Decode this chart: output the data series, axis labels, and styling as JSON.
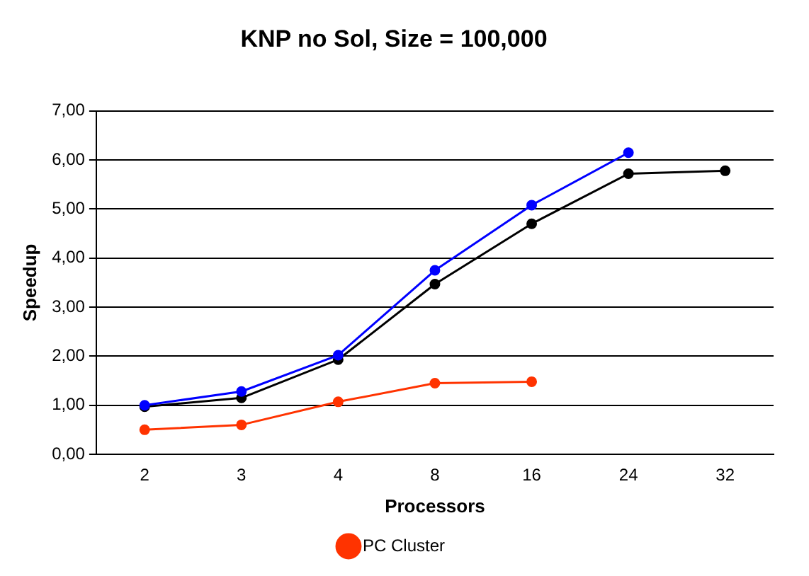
{
  "chart_data": {
    "type": "line",
    "title": "KNP no Sol, Size = 100,000",
    "xlabel": "Processors",
    "ylabel": "Speedup",
    "categories": [
      "2",
      "3",
      "4",
      "8",
      "16",
      "24",
      "32"
    ],
    "series": [
      {
        "color": "#0000ff",
        "values": [
          1.0,
          1.28,
          2.02,
          3.75,
          5.08,
          6.15,
          null
        ]
      },
      {
        "color": "#000000",
        "values": [
          0.97,
          1.15,
          1.93,
          3.47,
          4.7,
          5.72,
          5.78
        ]
      },
      {
        "name": "PC Cluster",
        "color": "#ff3300",
        "values": [
          0.5,
          0.6,
          1.07,
          1.45,
          1.48,
          null,
          null
        ]
      }
    ],
    "ylim": [
      0,
      7
    ],
    "yticks": [
      {
        "value": 0,
        "label": "0,00"
      },
      {
        "value": 1,
        "label": "1,00"
      },
      {
        "value": 2,
        "label": "2,00"
      },
      {
        "value": 3,
        "label": "3,00"
      },
      {
        "value": 4,
        "label": "4,00"
      },
      {
        "value": 5,
        "label": "5,00"
      },
      {
        "value": 6,
        "label": "6,00"
      },
      {
        "value": 7,
        "label": "7,00"
      }
    ],
    "grid": "y",
    "legend": "bottom",
    "marker": "circle",
    "line_style": "solid"
  }
}
